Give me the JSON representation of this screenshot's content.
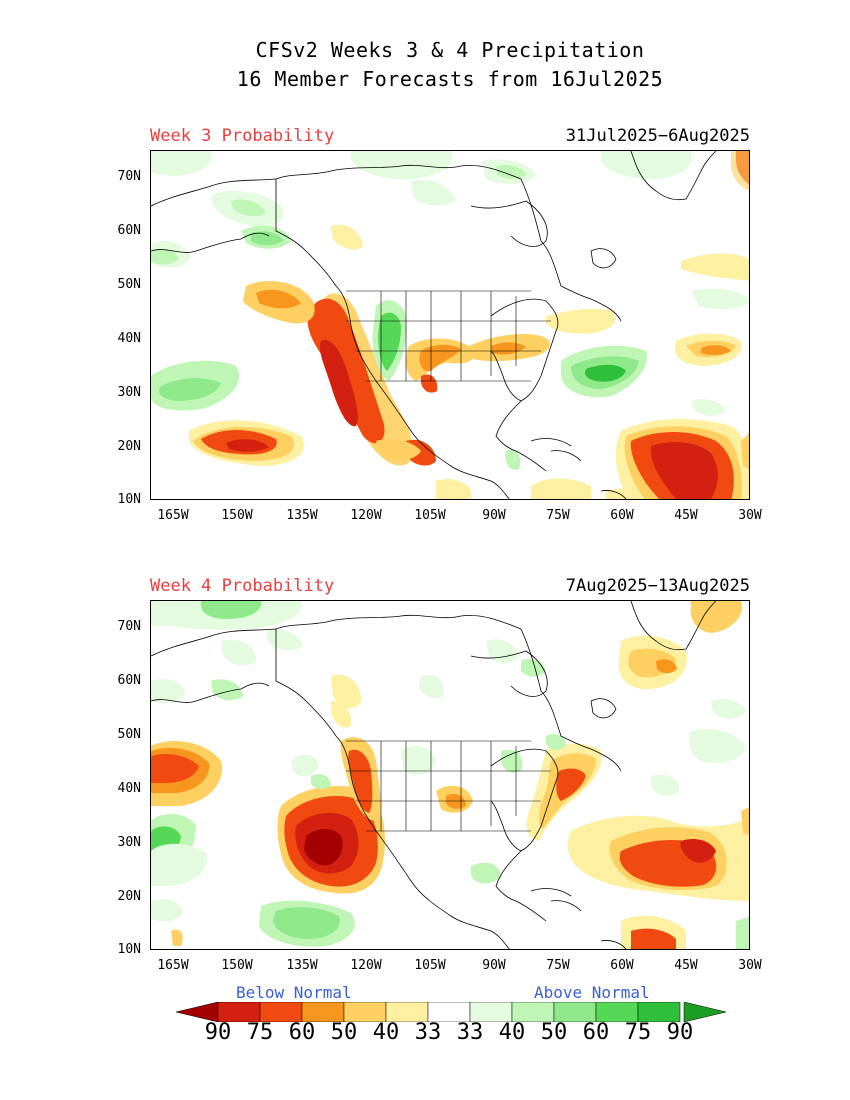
{
  "title": {
    "line1": "CFSv2 Weeks 3 & 4 Precipitation",
    "line2": "16 Member Forecasts from 16Jul2025"
  },
  "panels": [
    {
      "label": "Week 3 Probability",
      "dates": "31Jul2025−6Aug2025"
    },
    {
      "label": "Week 4 Probability",
      "dates": "7Aug2025−13Aug2025"
    }
  ],
  "axes": {
    "lat_labels": [
      "70N",
      "60N",
      "50N",
      "40N",
      "30N",
      "20N",
      "10N"
    ],
    "lon_labels": [
      "165W",
      "150W",
      "135W",
      "120W",
      "105W",
      "90W",
      "75W",
      "60W",
      "45W",
      "30W"
    ],
    "lat_range": [
      10,
      75
    ],
    "lon_range": [
      -170,
      -30
    ]
  },
  "legend": {
    "below_label": "Below Normal",
    "above_label": "Above Normal",
    "values": [
      "90",
      "75",
      "60",
      "50",
      "40",
      "33",
      "33",
      "40",
      "50",
      "60",
      "75",
      "90"
    ],
    "colors": {
      "below": [
        "#a50000",
        "#d42010",
        "#f04a10",
        "#f7961e",
        "#fdd061",
        "#fdf0a0"
      ],
      "neutral": "#ffffff",
      "above": [
        "#e4fbe0",
        "#bff5b5",
        "#8fe88a",
        "#55d855",
        "#2fbf3a",
        "#1a9e24"
      ]
    }
  }
}
